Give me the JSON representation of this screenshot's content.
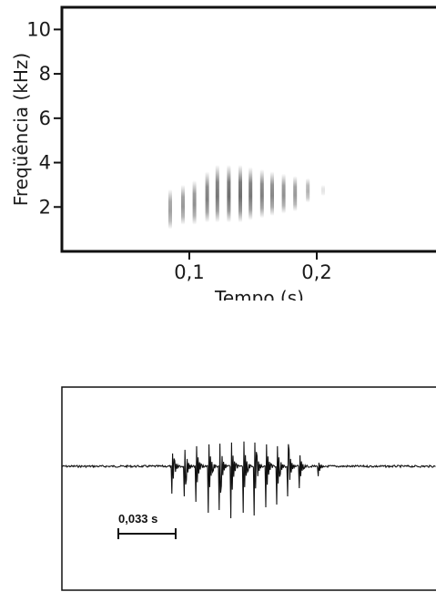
{
  "chart_data": [
    {
      "type": "heatmap",
      "title": "",
      "xlabel": "Tempo (s)",
      "ylabel": "Freqüência (kHz)",
      "xlim": [
        0,
        0.3
      ],
      "ylim": [
        0,
        11
      ],
      "x_ticks": [
        {
          "value": 0.1,
          "label": "0,1"
        },
        {
          "value": 0.2,
          "label": "0,2"
        }
      ],
      "y_ticks": [
        {
          "value": 2,
          "label": "2"
        },
        {
          "value": 4,
          "label": "4"
        },
        {
          "value": 6,
          "label": "6"
        },
        {
          "value": 8,
          "label": "8"
        },
        {
          "value": 10,
          "label": "10"
        }
      ],
      "pulses": [
        {
          "t": 0.085,
          "f_low": 1.0,
          "f_high": 2.8,
          "intensity": 0.55
        },
        {
          "t": 0.095,
          "f_low": 1.2,
          "f_high": 3.0,
          "intensity": 0.6
        },
        {
          "t": 0.104,
          "f_low": 1.2,
          "f_high": 3.2,
          "intensity": 0.65
        },
        {
          "t": 0.114,
          "f_low": 1.3,
          "f_high": 3.6,
          "intensity": 0.75
        },
        {
          "t": 0.122,
          "f_low": 1.3,
          "f_high": 3.9,
          "intensity": 0.8
        },
        {
          "t": 0.131,
          "f_low": 1.3,
          "f_high": 3.9,
          "intensity": 0.85
        },
        {
          "t": 0.14,
          "f_low": 1.3,
          "f_high": 3.9,
          "intensity": 0.85
        },
        {
          "t": 0.148,
          "f_low": 1.4,
          "f_high": 3.8,
          "intensity": 0.8
        },
        {
          "t": 0.157,
          "f_low": 1.5,
          "f_high": 3.7,
          "intensity": 0.75
        },
        {
          "t": 0.165,
          "f_low": 1.6,
          "f_high": 3.6,
          "intensity": 0.7
        },
        {
          "t": 0.174,
          "f_low": 1.7,
          "f_high": 3.5,
          "intensity": 0.65
        },
        {
          "t": 0.183,
          "f_low": 1.8,
          "f_high": 3.4,
          "intensity": 0.6
        },
        {
          "t": 0.193,
          "f_low": 2.2,
          "f_high": 3.3,
          "intensity": 0.45
        },
        {
          "t": 0.205,
          "f_low": 2.5,
          "f_high": 3.0,
          "intensity": 0.15
        }
      ]
    },
    {
      "type": "line",
      "title": "",
      "xlabel": "",
      "ylabel": "",
      "xlim": [
        0,
        0.3
      ],
      "ylim": [
        -1,
        1
      ],
      "scale_bar": {
        "value": 0.033,
        "label": "0,033 s"
      },
      "pulses": [
        {
          "t": 0.088,
          "up": 0.35,
          "down": 0.5
        },
        {
          "t": 0.098,
          "up": 0.45,
          "down": 0.55
        },
        {
          "t": 0.107,
          "up": 0.55,
          "down": 0.65
        },
        {
          "t": 0.117,
          "up": 0.6,
          "down": 0.85
        },
        {
          "t": 0.126,
          "up": 0.62,
          "down": 0.8
        },
        {
          "t": 0.135,
          "up": 0.65,
          "down": 0.95
        },
        {
          "t": 0.145,
          "up": 0.68,
          "down": 0.85
        },
        {
          "t": 0.154,
          "up": 0.65,
          "down": 0.9
        },
        {
          "t": 0.163,
          "up": 0.6,
          "down": 0.75
        },
        {
          "t": 0.172,
          "up": 0.55,
          "down": 0.7
        },
        {
          "t": 0.181,
          "up": 0.45,
          "down": 0.55
        },
        {
          "t": 0.19,
          "up": 0.3,
          "down": 0.4
        },
        {
          "t": 0.205,
          "up": 0.1,
          "down": 0.18
        }
      ]
    }
  ]
}
